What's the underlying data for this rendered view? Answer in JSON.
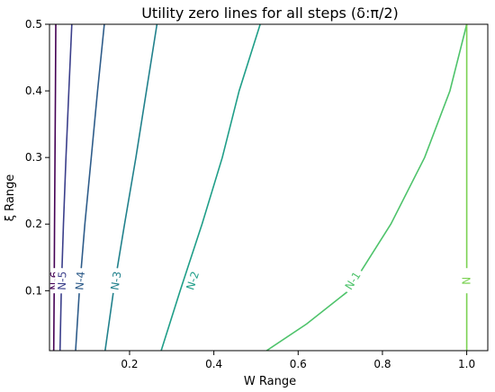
{
  "chart_data": {
    "type": "line",
    "title": "Utility zero lines for all steps (δ:π/2)",
    "xlabel": "W Range",
    "ylabel": "ξ Range",
    "xlim": [
      0.01,
      1.05
    ],
    "ylim": [
      0.01,
      0.5
    ],
    "xticks": [
      "0.2",
      "0.4",
      "0.6",
      "0.8",
      "1.0"
    ],
    "yticks": [
      "0.1",
      "0.2",
      "0.3",
      "0.4",
      "0.5"
    ],
    "grid": false,
    "legend": "none",
    "series": [
      {
        "name": "N-6",
        "color": "#440154",
        "points": [
          [
            0.02,
            0.01
          ],
          [
            0.021,
            0.1
          ],
          [
            0.022,
            0.2
          ],
          [
            0.023,
            0.3
          ],
          [
            0.024,
            0.4
          ],
          [
            0.025,
            0.5
          ]
        ],
        "label_at": [
          0.022,
          0.115
        ]
      },
      {
        "name": "N-5",
        "color": "#3b3f8b",
        "points": [
          [
            0.035,
            0.01
          ],
          [
            0.038,
            0.1
          ],
          [
            0.043,
            0.2
          ],
          [
            0.049,
            0.3
          ],
          [
            0.056,
            0.4
          ],
          [
            0.063,
            0.5
          ]
        ],
        "label_at": [
          0.04,
          0.115
        ]
      },
      {
        "name": "N-4",
        "color": "#2e5c8a",
        "points": [
          [
            0.072,
            0.01
          ],
          [
            0.081,
            0.1
          ],
          [
            0.094,
            0.2
          ],
          [
            0.109,
            0.3
          ],
          [
            0.124,
            0.4
          ],
          [
            0.14,
            0.5
          ]
        ],
        "label_at": [
          0.083,
          0.115
        ]
      },
      {
        "name": "N-3",
        "color": "#21818c",
        "points": [
          [
            0.142,
            0.01
          ],
          [
            0.162,
            0.1
          ],
          [
            0.188,
            0.2
          ],
          [
            0.215,
            0.3
          ],
          [
            0.24,
            0.4
          ],
          [
            0.265,
            0.5
          ]
        ],
        "label_at": [
          0.168,
          0.115
        ]
      },
      {
        "name": "N-2",
        "color": "#1f9e88",
        "points": [
          [
            0.275,
            0.01
          ],
          [
            0.32,
            0.1
          ],
          [
            0.372,
            0.2
          ],
          [
            0.42,
            0.3
          ],
          [
            0.46,
            0.4
          ],
          [
            0.51,
            0.5
          ]
        ],
        "label_at": [
          0.35,
          0.115
        ]
      },
      {
        "name": "N-1",
        "color": "#4ec36b",
        "points": [
          [
            0.525,
            0.01
          ],
          [
            0.62,
            0.05
          ],
          [
            0.72,
            0.1
          ],
          [
            0.82,
            0.2
          ],
          [
            0.9,
            0.3
          ],
          [
            0.96,
            0.4
          ],
          [
            1.0,
            0.5
          ]
        ],
        "label_at": [
          0.73,
          0.115
        ]
      },
      {
        "name": "N",
        "color": "#7ad151",
        "points": [
          [
            1.0,
            0.01
          ],
          [
            1.0,
            0.5
          ]
        ],
        "label_at": [
          1.0,
          0.115
        ]
      }
    ]
  }
}
